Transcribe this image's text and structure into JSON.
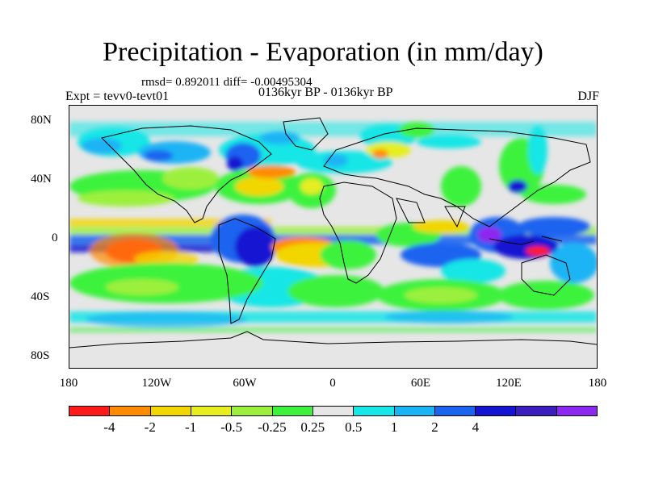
{
  "title": "Precipitation - Evaporation (in mm/day)",
  "stats": "rmsd= 0.892011 diff= -0.00495304",
  "experiment": "Expt = tevv0-tevt01",
  "period": "0136kyr BP - 0136kyr BP",
  "season": "DJF",
  "map": {
    "projection": "cylindrical-equidistant",
    "lat_range": [
      -90,
      90
    ],
    "lon_range": [
      -180,
      180
    ],
    "background_color": "#e6e6e6",
    "lat_ticks": [
      "80N",
      "40N",
      "0",
      "40S",
      "80S"
    ],
    "lon_ticks": [
      "180",
      "120W",
      "60W",
      "0",
      "60E",
      "120E",
      "180"
    ]
  },
  "colorbar": {
    "colors": [
      "#ff1a1a",
      "#ff8c00",
      "#f2d600",
      "#e6ee20",
      "#9cf03c",
      "#3df23d",
      "#e6e6e6",
      "#19e6e6",
      "#1ab4f5",
      "#1a64f0",
      "#1414d2",
      "#3c1ebe",
      "#8c28f0"
    ],
    "labels": [
      "-4",
      "-2",
      "-1",
      "-0.5",
      "-0.25",
      "0.25",
      "0.5",
      "1",
      "2",
      "4"
    ],
    "label_boundaries": [
      1,
      2,
      3,
      4,
      5,
      6,
      7,
      8,
      9,
      10
    ]
  }
}
